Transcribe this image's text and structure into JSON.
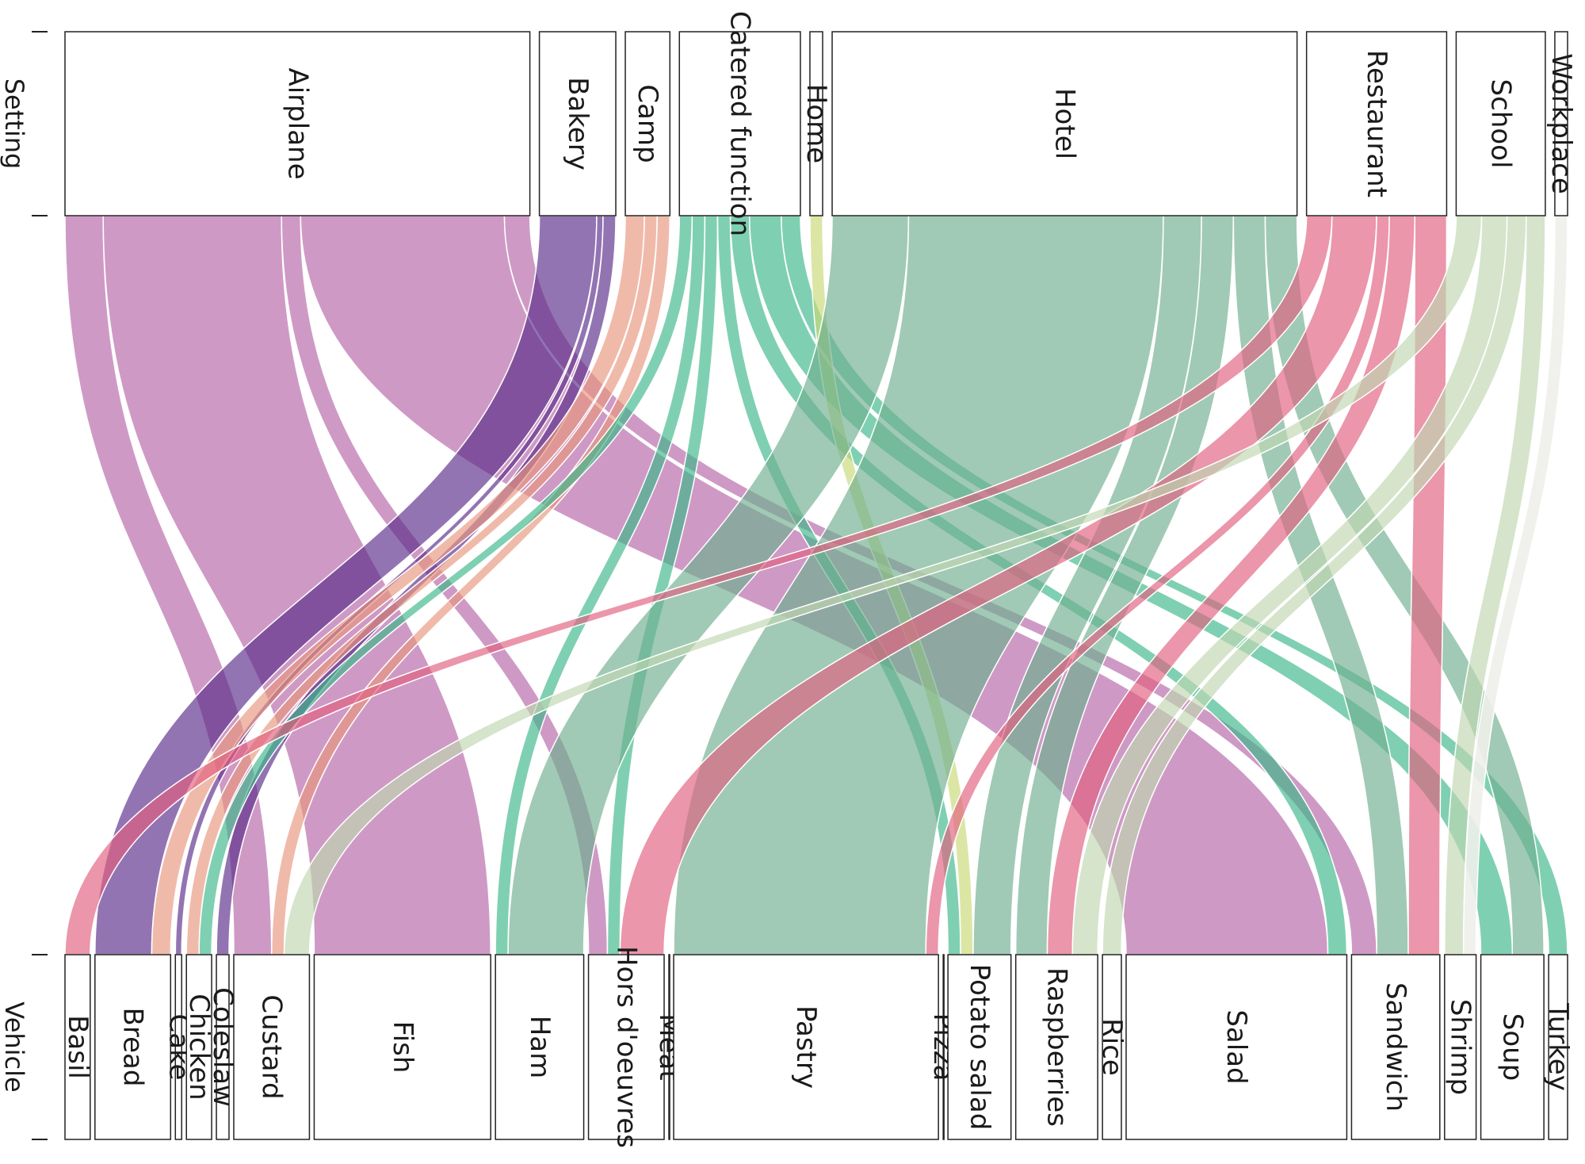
{
  "chart_data": {
    "type": "alluvial",
    "axes": [
      "Setting",
      "Vehicle"
    ],
    "settings": [
      {
        "name": "Airplane",
        "color": "#B565A7"
      },
      {
        "name": "Bakery",
        "color": "#5B2C8A"
      },
      {
        "name": "Camp",
        "color": "#E8967E"
      },
      {
        "name": "Catered function",
        "color": "#3CB88A"
      },
      {
        "name": "Home",
        "color": "#C8D977"
      },
      {
        "name": "Hotel",
        "color": "#6FAE8E"
      },
      {
        "name": "Restaurant",
        "color": "#E0607E"
      },
      {
        "name": "School",
        "color": "#C0D6B0"
      },
      {
        "name": "Workplace",
        "color": "#EEF0EA"
      }
    ],
    "vehicles": [
      "Basil",
      "Bread",
      "Cake",
      "Chicken",
      "Coleslaw",
      "Custard",
      "Fish",
      "Ham",
      "Hors d'oeuvres",
      "Meat",
      "Pastry",
      "Pizza",
      "Potato salad",
      "Raspberries",
      "Rice",
      "Salad",
      "Sandwich",
      "Shrimp",
      "Soup",
      "Turkey"
    ],
    "flows": [
      {
        "setting": "Airplane",
        "vehicle": "Custard",
        "value": 3
      },
      {
        "setting": "Airplane",
        "vehicle": "Fish",
        "value": 14
      },
      {
        "setting": "Airplane",
        "vehicle": "Hors d'oeuvres",
        "value": 1.5
      },
      {
        "setting": "Airplane",
        "vehicle": "Salad",
        "value": 16
      },
      {
        "setting": "Airplane",
        "vehicle": "Sandwich",
        "value": 2
      },
      {
        "setting": "Bakery",
        "vehicle": "Bread",
        "value": 4.5
      },
      {
        "setting": "Bakery",
        "vehicle": "Cake",
        "value": 0.5
      },
      {
        "setting": "Bakery",
        "vehicle": "Coleslaw",
        "value": 1
      },
      {
        "setting": "Camp",
        "vehicle": "Bread",
        "value": 1.5
      },
      {
        "setting": "Camp",
        "vehicle": "Chicken",
        "value": 1
      },
      {
        "setting": "Camp",
        "vehicle": "Custard",
        "value": 1
      },
      {
        "setting": "Catered function",
        "vehicle": "Chicken",
        "value": 1
      },
      {
        "setting": "Catered function",
        "vehicle": "Ham",
        "value": 1
      },
      {
        "setting": "Catered function",
        "vehicle": "Hors d'oeuvres",
        "value": 1
      },
      {
        "setting": "Catered function",
        "vehicle": "Potato salad",
        "value": 1
      },
      {
        "setting": "Catered function",
        "vehicle": "Salad",
        "value": 1.5
      },
      {
        "setting": "Catered function",
        "vehicle": "Soup",
        "value": 2.5
      },
      {
        "setting": "Catered function",
        "vehicle": "Turkey",
        "value": 1.5
      },
      {
        "setting": "Home",
        "vehicle": "Potato salad",
        "value": 1
      },
      {
        "setting": "Hotel",
        "vehicle": "Ham",
        "value": 6
      },
      {
        "setting": "Hotel",
        "vehicle": "Pastry",
        "value": 20
      },
      {
        "setting": "Hotel",
        "vehicle": "Potato salad",
        "value": 3
      },
      {
        "setting": "Hotel",
        "vehicle": "Raspberries",
        "value": 2.5
      },
      {
        "setting": "Hotel",
        "vehicle": "Sandwich",
        "value": 2.5
      },
      {
        "setting": "Hotel",
        "vehicle": "Soup",
        "value": 2.5
      },
      {
        "setting": "Restaurant",
        "vehicle": "Basil",
        "value": 2
      },
      {
        "setting": "Restaurant",
        "vehicle": "Hors d'oeuvres",
        "value": 3.5
      },
      {
        "setting": "Restaurant",
        "vehicle": "Pastry",
        "value": 1
      },
      {
        "setting": "Restaurant",
        "vehicle": "Raspberries",
        "value": 2
      },
      {
        "setting": "Restaurant",
        "vehicle": "Sandwich",
        "value": 2.5
      },
      {
        "setting": "School",
        "vehicle": "Custard",
        "value": 2
      },
      {
        "setting": "School",
        "vehicle": "Raspberries",
        "value": 2
      },
      {
        "setting": "School",
        "vehicle": "Rice",
        "value": 1.5
      },
      {
        "setting": "School",
        "vehicle": "Shrimp",
        "value": 1.5
      },
      {
        "setting": "Workplace",
        "vehicle": "Shrimp",
        "value": 1
      }
    ]
  }
}
